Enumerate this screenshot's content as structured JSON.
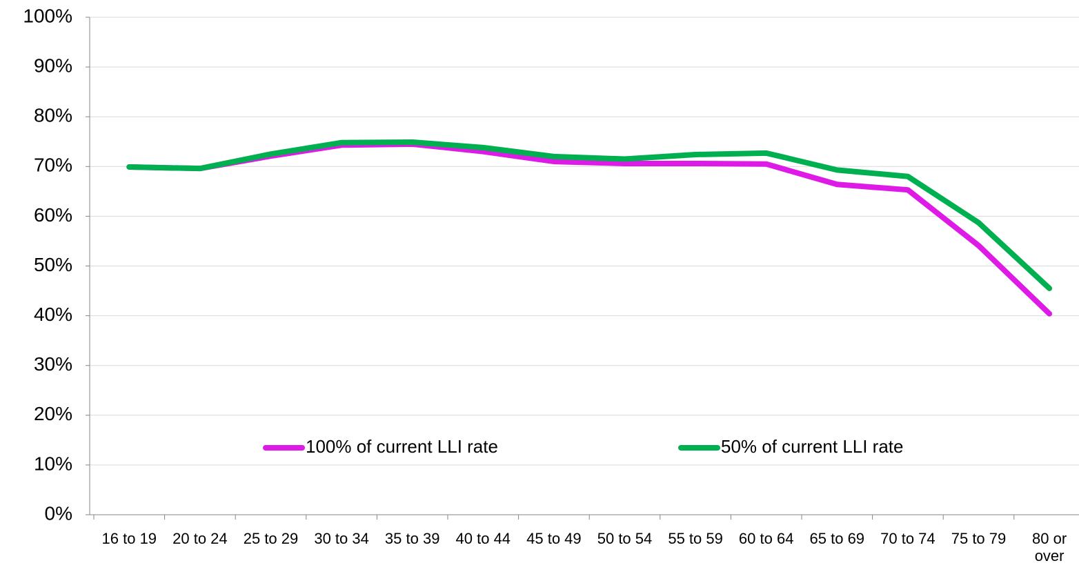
{
  "chart_data": {
    "type": "line",
    "categories": [
      "16 to 19",
      "20 to 24",
      "25 to 29",
      "30 to 34",
      "35 to 39",
      "40 to 44",
      "45 to 49",
      "50 to 54",
      "55 to 59",
      "60 to 64",
      "65 to 69",
      "70 to 74",
      "75 to 79",
      "80 or over"
    ],
    "series": [
      {
        "name": "100% of current LLI rate",
        "color": "#dd1ae6",
        "values": [
          69.9,
          69.6,
          72.1,
          74.3,
          74.5,
          73.0,
          71.0,
          70.6,
          70.6,
          70.5,
          66.4,
          65.3,
          54.1,
          40.4
        ]
      },
      {
        "name": "50% of current LLI rate",
        "color": "#00b050",
        "values": [
          69.9,
          69.6,
          72.5,
          74.8,
          74.9,
          73.8,
          72.0,
          71.5,
          72.4,
          72.7,
          69.3,
          68.0,
          58.7,
          45.5
        ]
      }
    ],
    "ylim": [
      0,
      100
    ],
    "yticks": [
      {
        "value": 0,
        "label": "0%"
      },
      {
        "value": 10,
        "label": "10%"
      },
      {
        "value": 20,
        "label": "20%"
      },
      {
        "value": 30,
        "label": "30%"
      },
      {
        "value": 40,
        "label": "40%"
      },
      {
        "value": 50,
        "label": "50%"
      },
      {
        "value": 60,
        "label": "60%"
      },
      {
        "value": 70,
        "label": "70%"
      },
      {
        "value": 80,
        "label": "80%"
      },
      {
        "value": 90,
        "label": "90%"
      },
      {
        "value": 100,
        "label": "100%"
      }
    ],
    "grid": true,
    "legend": "bottom"
  }
}
